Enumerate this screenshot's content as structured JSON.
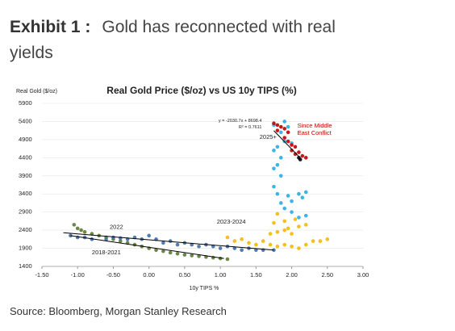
{
  "header": {
    "exhibit": "Exhibit 1 :",
    "title": "Gold has reconnected with real yields"
  },
  "source": "Source: Bloomberg, Morgan Stanley Research",
  "chart_data": {
    "type": "scatter",
    "title": "Real Gold Price ($/oz) vs US 10y TIPS (%)",
    "y_label": "Real Gold ($/oz)",
    "x_label": "10y TIPS %",
    "xlim": [
      -1.5,
      3.0
    ],
    "ylim": [
      1400,
      5900
    ],
    "xticks": [
      {
        "value": -1.5,
        "label": "-1.50"
      },
      {
        "value": -1.0,
        "label": "-1.00"
      },
      {
        "value": -0.5,
        "label": "-0.50"
      },
      {
        "value": 0.0,
        "label": "0.00"
      },
      {
        "value": 0.5,
        "label": "0.50"
      },
      {
        "value": 1.0,
        "label": "1.00"
      },
      {
        "value": 1.5,
        "label": "1.50"
      },
      {
        "value": 2.0,
        "label": "2.00"
      },
      {
        "value": 2.5,
        "label": "2.50"
      },
      {
        "value": 3.0,
        "label": "3.00"
      }
    ],
    "yticks": [
      1400,
      1900,
      2400,
      2900,
      3400,
      3900,
      4400,
      4900,
      5400,
      5900
    ],
    "grid": true,
    "series": [
      {
        "name": "2018-2021",
        "color": "#5d7a33",
        "x": [
          -1.05,
          -1.0,
          -0.95,
          -0.9,
          -0.8,
          -0.7,
          -0.6,
          -0.5,
          -0.4,
          -0.3,
          -0.2,
          -0.1,
          0.0,
          0.1,
          0.2,
          0.3,
          0.4,
          0.5,
          0.6,
          0.7,
          0.8,
          0.9,
          1.0,
          1.1
        ],
        "values": [
          2550,
          2450,
          2400,
          2350,
          2300,
          2250,
          2200,
          2150,
          2100,
          2050,
          2000,
          1950,
          1900,
          1850,
          1820,
          1780,
          1750,
          1720,
          1700,
          1680,
          1660,
          1640,
          1620,
          1600
        ]
      },
      {
        "name": "2022",
        "color": "#3f6fa8",
        "x": [
          -1.1,
          -1.0,
          -0.9,
          -0.8,
          -0.6,
          -0.5,
          -0.4,
          -0.3,
          -0.2,
          -0.1,
          0.0,
          0.1,
          0.2,
          0.3,
          0.4,
          0.5,
          0.6,
          0.7,
          0.8,
          0.9,
          1.0,
          1.1,
          1.2,
          1.3,
          1.4,
          1.5,
          1.6,
          1.75
        ],
        "values": [
          2250,
          2200,
          2200,
          2150,
          2150,
          2200,
          2180,
          2150,
          2200,
          2150,
          2250,
          2150,
          2050,
          2100,
          2000,
          2050,
          2000,
          1950,
          2000,
          1950,
          1900,
          1950,
          1900,
          1850,
          1900,
          1850,
          1850,
          1850
        ]
      },
      {
        "name": "2023-2024",
        "color": "#f5b800",
        "x": [
          1.1,
          1.2,
          1.3,
          1.4,
          1.5,
          1.6,
          1.7,
          1.8,
          1.9,
          2.0,
          2.1,
          2.2,
          2.3,
          2.4,
          2.5,
          1.7,
          1.8,
          1.9,
          2.0,
          1.75,
          1.9,
          2.05,
          2.2,
          1.8,
          1.95,
          2.1
        ],
        "values": [
          2200,
          2100,
          2150,
          2050,
          2000,
          2100,
          2000,
          1950,
          2000,
          1950,
          1900,
          2000,
          2100,
          2100,
          2150,
          2300,
          2350,
          2400,
          2300,
          2600,
          2650,
          2700,
          2550,
          2850,
          2450,
          2500
        ]
      },
      {
        "name": "2025+",
        "color": "#29abe2",
        "x": [
          2.2,
          2.1,
          2.0,
          1.9,
          1.85,
          2.0,
          2.15,
          1.8,
          1.95,
          2.1,
          2.2,
          1.75,
          1.85,
          1.75,
          1.8,
          1.85,
          1.75,
          1.8,
          1.9,
          2.0,
          1.85,
          1.95,
          1.9,
          1.75
        ],
        "values": [
          2800,
          2750,
          2900,
          3000,
          3150,
          3200,
          3300,
          3400,
          3350,
          3400,
          3450,
          3600,
          3900,
          4100,
          4200,
          4400,
          4600,
          4700,
          4850,
          4800,
          5100,
          5250,
          5400,
          5300
        ]
      },
      {
        "name": "Since Middle East Conflict",
        "color": "#c00000",
        "x": [
          1.75,
          1.8,
          1.85,
          1.9,
          1.95,
          1.9,
          1.95,
          2.0,
          2.05,
          2.0,
          2.1,
          2.15,
          2.2,
          2.05,
          1.8
        ],
        "values": [
          5350,
          5300,
          5250,
          5200,
          5100,
          4950,
          4850,
          4750,
          4700,
          4600,
          4550,
          4450,
          4400,
          4500,
          5150
        ]
      },
      {
        "color": "#000000",
        "x": [
          2.1,
          2.12
        ],
        "values": [
          4400,
          4350
        ]
      }
    ],
    "trendlines": [
      {
        "x": [
          -1.1,
          1.05
        ],
        "values": [
          2250,
          1620
        ]
      },
      {
        "x": [
          -1.2,
          1.75
        ],
        "values": [
          2330,
          1850
        ]
      },
      {
        "x": [
          1.75,
          2.1
        ],
        "values": [
          5145,
          4434
        ]
      }
    ],
    "annotations": [
      "y = -2030.7x + 8698.4",
      "R² = 0.7611"
    ]
  }
}
